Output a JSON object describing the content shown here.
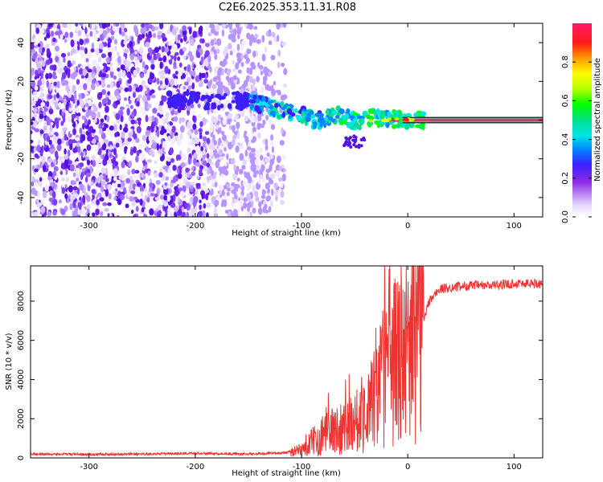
{
  "title": "C2E6.2025.353.11.31.R08",
  "chart_data": [
    {
      "type": "heatmap",
      "name": "spectrogram",
      "xlabel": "Height of straight line (km)",
      "ylabel": "Frequency (Hz)",
      "xlim": [
        -355,
        127
      ],
      "ylim": [
        -50,
        50
      ],
      "xticks": [
        -300,
        -200,
        -100,
        0,
        100
      ],
      "yticks": [
        -40,
        -20,
        0,
        20,
        40
      ],
      "colorbar": {
        "label": "Normalized spectral amplitude",
        "range": [
          0,
          1
        ],
        "ticks": [
          0.0,
          0.2,
          0.4,
          0.6,
          0.8
        ]
      },
      "features": {
        "noise_region_x": [
          -355,
          -115
        ],
        "signal_track_start_x": -225,
        "saturated_line_start_x": -5,
        "saturated_line_freq": 0
      }
    },
    {
      "type": "line",
      "name": "snr",
      "xlabel": "Height of straight line (km)",
      "ylabel": "SNR (10 * v/v)",
      "xlim": [
        -355,
        127
      ],
      "ylim": [
        0,
        9800
      ],
      "xticks": [
        -300,
        -200,
        -100,
        0,
        100
      ],
      "yticks": [
        0,
        2000,
        4000,
        6000,
        8000
      ],
      "color": "#ee3333",
      "x": [
        -355,
        -300,
        -250,
        -200,
        -150,
        -120,
        -100,
        -90,
        -80,
        -70,
        -60,
        -50,
        -40,
        -30,
        -25,
        -20,
        -15,
        -10,
        -5,
        0,
        5,
        10,
        15,
        20,
        30,
        40,
        60,
        80,
        100,
        127
      ],
      "values": [
        200,
        180,
        200,
        230,
        200,
        250,
        400,
        800,
        1200,
        1400,
        1600,
        1900,
        2300,
        3000,
        4000,
        4500,
        4800,
        5000,
        5500,
        6000,
        6200,
        6300,
        7000,
        8000,
        8600,
        8700,
        8800,
        8800,
        8900,
        8900
      ]
    }
  ]
}
